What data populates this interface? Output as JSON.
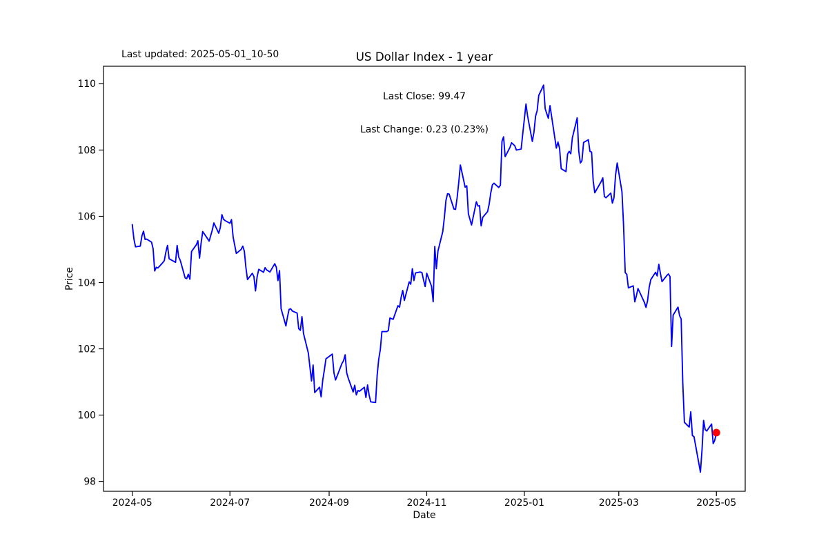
{
  "figure": {
    "last_updated": "Last updated: 2025-05-01_10-50"
  },
  "chart_data": {
    "type": "line",
    "title": "US Dollar Index - 1 year",
    "xlabel": "Date",
    "ylabel": "Price",
    "annotations": [
      "Last Close: 99.47",
      "Last Change: 0.23 (0.23%)"
    ],
    "last_close": 99.47,
    "last_change": 0.23,
    "last_change_pct": "0.23%",
    "line_color": "#0000ff",
    "marker_color": "#ff0000",
    "frame_color": "#000000",
    "x_ticks": [
      "2024-05",
      "2024-07",
      "2024-09",
      "2024-11",
      "2025-01",
      "2025-03",
      "2025-05"
    ],
    "y_ticks": [
      98,
      100,
      102,
      104,
      106,
      108,
      110
    ],
    "xlim": [
      "2024-04-13",
      "2025-05-19"
    ],
    "ylim": [
      97.7,
      110.53
    ],
    "grid": false,
    "legend": null,
    "marker": {
      "date": "2025-05-01",
      "value": 99.47
    },
    "series": [
      {
        "name": "US Dollar Index",
        "points": [
          [
            "2024-05-01",
            105.75
          ],
          [
            "2024-05-02",
            105.31
          ],
          [
            "2024-05-03",
            105.08
          ],
          [
            "2024-05-06",
            105.1
          ],
          [
            "2024-05-07",
            105.41
          ],
          [
            "2024-05-08",
            105.55
          ],
          [
            "2024-05-09",
            105.3
          ],
          [
            "2024-05-10",
            105.31
          ],
          [
            "2024-05-13",
            105.22
          ],
          [
            "2024-05-14",
            105.02
          ],
          [
            "2024-05-15",
            104.35
          ],
          [
            "2024-05-16",
            104.46
          ],
          [
            "2024-05-17",
            104.44
          ],
          [
            "2024-05-20",
            104.6
          ],
          [
            "2024-05-21",
            104.66
          ],
          [
            "2024-05-22",
            104.92
          ],
          [
            "2024-05-23",
            105.12
          ],
          [
            "2024-05-24",
            104.72
          ],
          [
            "2024-05-28",
            104.61
          ],
          [
            "2024-05-29",
            105.12
          ],
          [
            "2024-05-30",
            104.77
          ],
          [
            "2024-05-31",
            104.67
          ],
          [
            "2024-06-03",
            104.14
          ],
          [
            "2024-06-04",
            104.12
          ],
          [
            "2024-06-05",
            104.25
          ],
          [
            "2024-06-06",
            104.1
          ],
          [
            "2024-06-07",
            104.94
          ],
          [
            "2024-06-10",
            105.14
          ],
          [
            "2024-06-11",
            105.26
          ],
          [
            "2024-06-12",
            104.74
          ],
          [
            "2024-06-13",
            105.2
          ],
          [
            "2024-06-14",
            105.54
          ],
          [
            "2024-06-17",
            105.33
          ],
          [
            "2024-06-18",
            105.25
          ],
          [
            "2024-06-20",
            105.59
          ],
          [
            "2024-06-21",
            105.8
          ],
          [
            "2024-06-24",
            105.49
          ],
          [
            "2024-06-25",
            105.66
          ],
          [
            "2024-06-26",
            106.05
          ],
          [
            "2024-06-27",
            105.91
          ],
          [
            "2024-06-28",
            105.87
          ],
          [
            "2024-07-01",
            105.79
          ],
          [
            "2024-07-02",
            105.9
          ],
          [
            "2024-07-03",
            105.37
          ],
          [
            "2024-07-05",
            104.88
          ],
          [
            "2024-07-08",
            105.0
          ],
          [
            "2024-07-09",
            105.1
          ],
          [
            "2024-07-10",
            104.95
          ],
          [
            "2024-07-11",
            104.45
          ],
          [
            "2024-07-12",
            104.09
          ],
          [
            "2024-07-15",
            104.28
          ],
          [
            "2024-07-16",
            104.18
          ],
          [
            "2024-07-17",
            103.75
          ],
          [
            "2024-07-18",
            104.17
          ],
          [
            "2024-07-19",
            104.4
          ],
          [
            "2024-07-22",
            104.31
          ],
          [
            "2024-07-23",
            104.45
          ],
          [
            "2024-07-24",
            104.38
          ],
          [
            "2024-07-25",
            104.35
          ],
          [
            "2024-07-26",
            104.32
          ],
          [
            "2024-07-29",
            104.57
          ],
          [
            "2024-07-30",
            104.46
          ],
          [
            "2024-07-31",
            104.06
          ],
          [
            "2024-08-01",
            104.36
          ],
          [
            "2024-08-02",
            103.21
          ],
          [
            "2024-08-05",
            102.69
          ],
          [
            "2024-08-06",
            102.97
          ],
          [
            "2024-08-07",
            103.19
          ],
          [
            "2024-08-08",
            103.21
          ],
          [
            "2024-08-09",
            103.14
          ],
          [
            "2024-08-12",
            103.08
          ],
          [
            "2024-08-13",
            102.61
          ],
          [
            "2024-08-14",
            102.56
          ],
          [
            "2024-08-15",
            102.97
          ],
          [
            "2024-08-16",
            102.46
          ],
          [
            "2024-08-19",
            101.87
          ],
          [
            "2024-08-20",
            101.44
          ],
          [
            "2024-08-21",
            101.03
          ],
          [
            "2024-08-22",
            101.51
          ],
          [
            "2024-08-23",
            100.68
          ],
          [
            "2024-08-26",
            100.84
          ],
          [
            "2024-08-27",
            100.55
          ],
          [
            "2024-08-28",
            101.05
          ],
          [
            "2024-08-29",
            101.35
          ],
          [
            "2024-08-30",
            101.7
          ],
          [
            "2024-09-03",
            101.84
          ],
          [
            "2024-09-04",
            101.27
          ],
          [
            "2024-09-05",
            101.06
          ],
          [
            "2024-09-06",
            101.18
          ],
          [
            "2024-09-09",
            101.56
          ],
          [
            "2024-09-10",
            101.64
          ],
          [
            "2024-09-11",
            101.82
          ],
          [
            "2024-09-12",
            101.27
          ],
          [
            "2024-09-13",
            101.11
          ],
          [
            "2024-09-16",
            100.7
          ],
          [
            "2024-09-17",
            100.9
          ],
          [
            "2024-09-18",
            100.61
          ],
          [
            "2024-09-19",
            100.74
          ],
          [
            "2024-09-20",
            100.72
          ],
          [
            "2024-09-23",
            100.84
          ],
          [
            "2024-09-24",
            100.53
          ],
          [
            "2024-09-25",
            100.91
          ],
          [
            "2024-09-26",
            100.6
          ],
          [
            "2024-09-27",
            100.4
          ],
          [
            "2024-09-30",
            100.38
          ],
          [
            "2024-10-01",
            101.2
          ],
          [
            "2024-10-02",
            101.69
          ],
          [
            "2024-10-03",
            101.98
          ],
          [
            "2024-10-04",
            102.52
          ],
          [
            "2024-10-07",
            102.52
          ],
          [
            "2024-10-08",
            102.55
          ],
          [
            "2024-10-09",
            102.93
          ],
          [
            "2024-10-10",
            102.91
          ],
          [
            "2024-10-11",
            102.89
          ],
          [
            "2024-10-14",
            103.3
          ],
          [
            "2024-10-15",
            103.26
          ],
          [
            "2024-10-16",
            103.56
          ],
          [
            "2024-10-17",
            103.76
          ],
          [
            "2024-10-18",
            103.46
          ],
          [
            "2024-10-21",
            104.02
          ],
          [
            "2024-10-22",
            103.95
          ],
          [
            "2024-10-23",
            104.42
          ],
          [
            "2024-10-24",
            104.06
          ],
          [
            "2024-10-25",
            104.29
          ],
          [
            "2024-10-28",
            104.32
          ],
          [
            "2024-10-29",
            104.3
          ],
          [
            "2024-10-30",
            104.08
          ],
          [
            "2024-10-31",
            103.88
          ],
          [
            "2024-11-01",
            104.28
          ],
          [
            "2024-11-04",
            103.89
          ],
          [
            "2024-11-05",
            103.42
          ],
          [
            "2024-11-06",
            105.09
          ],
          [
            "2024-11-07",
            104.42
          ],
          [
            "2024-11-08",
            104.95
          ],
          [
            "2024-11-11",
            105.54
          ],
          [
            "2024-11-12",
            105.96
          ],
          [
            "2024-11-13",
            106.48
          ],
          [
            "2024-11-14",
            106.68
          ],
          [
            "2024-11-15",
            106.67
          ],
          [
            "2024-11-18",
            106.22
          ],
          [
            "2024-11-19",
            106.21
          ],
          [
            "2024-11-20",
            106.56
          ],
          [
            "2024-11-21",
            107.03
          ],
          [
            "2024-11-22",
            107.55
          ],
          [
            "2024-11-25",
            106.88
          ],
          [
            "2024-11-26",
            106.92
          ],
          [
            "2024-11-27",
            106.08
          ],
          [
            "2024-11-29",
            105.74
          ],
          [
            "2024-12-02",
            106.44
          ],
          [
            "2024-12-03",
            106.31
          ],
          [
            "2024-12-04",
            106.32
          ],
          [
            "2024-12-05",
            105.71
          ],
          [
            "2024-12-06",
            105.97
          ],
          [
            "2024-12-09",
            106.14
          ],
          [
            "2024-12-10",
            106.36
          ],
          [
            "2024-12-11",
            106.7
          ],
          [
            "2024-12-12",
            106.95
          ],
          [
            "2024-12-13",
            107.0
          ],
          [
            "2024-12-16",
            106.87
          ],
          [
            "2024-12-17",
            106.94
          ],
          [
            "2024-12-18",
            108.26
          ],
          [
            "2024-12-19",
            108.4
          ],
          [
            "2024-12-20",
            107.8
          ],
          [
            "2024-12-23",
            108.08
          ],
          [
            "2024-12-24",
            108.22
          ],
          [
            "2024-12-26",
            108.13
          ],
          [
            "2024-12-27",
            108.0
          ],
          [
            "2024-12-30",
            108.03
          ],
          [
            "2024-12-31",
            108.49
          ],
          [
            "2025-01-02",
            109.39
          ],
          [
            "2025-01-03",
            109.03
          ],
          [
            "2025-01-06",
            108.26
          ],
          [
            "2025-01-07",
            108.55
          ],
          [
            "2025-01-08",
            109.02
          ],
          [
            "2025-01-09",
            109.19
          ],
          [
            "2025-01-10",
            109.65
          ],
          [
            "2025-01-13",
            109.96
          ],
          [
            "2025-01-14",
            109.25
          ],
          [
            "2025-01-15",
            109.1
          ],
          [
            "2025-01-16",
            108.96
          ],
          [
            "2025-01-17",
            109.34
          ],
          [
            "2025-01-21",
            108.06
          ],
          [
            "2025-01-22",
            108.24
          ],
          [
            "2025-01-23",
            108.05
          ],
          [
            "2025-01-24",
            107.44
          ],
          [
            "2025-01-27",
            107.35
          ],
          [
            "2025-01-28",
            107.88
          ],
          [
            "2025-01-29",
            107.96
          ],
          [
            "2025-01-30",
            107.89
          ],
          [
            "2025-01-31",
            108.37
          ],
          [
            "2025-02-03",
            108.97
          ],
          [
            "2025-02-04",
            107.96
          ],
          [
            "2025-02-05",
            107.61
          ],
          [
            "2025-02-06",
            107.68
          ],
          [
            "2025-02-07",
            108.23
          ],
          [
            "2025-02-10",
            108.31
          ],
          [
            "2025-02-11",
            107.96
          ],
          [
            "2025-02-12",
            107.94
          ],
          [
            "2025-02-13",
            107.07
          ],
          [
            "2025-02-14",
            106.71
          ],
          [
            "2025-02-18",
            107.05
          ],
          [
            "2025-02-19",
            107.16
          ],
          [
            "2025-02-20",
            106.6
          ],
          [
            "2025-02-21",
            106.56
          ],
          [
            "2025-02-24",
            106.7
          ],
          [
            "2025-02-25",
            106.4
          ],
          [
            "2025-02-26",
            106.56
          ],
          [
            "2025-02-27",
            107.24
          ],
          [
            "2025-02-28",
            107.61
          ],
          [
            "2025-03-03",
            106.74
          ],
          [
            "2025-03-04",
            105.74
          ],
          [
            "2025-03-05",
            104.3
          ],
          [
            "2025-03-06",
            104.25
          ],
          [
            "2025-03-07",
            103.84
          ],
          [
            "2025-03-10",
            103.9
          ],
          [
            "2025-03-11",
            103.42
          ],
          [
            "2025-03-12",
            103.6
          ],
          [
            "2025-03-13",
            103.82
          ],
          [
            "2025-03-14",
            103.72
          ],
          [
            "2025-03-17",
            103.4
          ],
          [
            "2025-03-18",
            103.25
          ],
          [
            "2025-03-19",
            103.45
          ],
          [
            "2025-03-20",
            103.85
          ],
          [
            "2025-03-21",
            104.09
          ],
          [
            "2025-03-24",
            104.31
          ],
          [
            "2025-03-25",
            104.2
          ],
          [
            "2025-03-26",
            104.55
          ],
          [
            "2025-03-27",
            104.28
          ],
          [
            "2025-03-28",
            104.03
          ],
          [
            "2025-03-31",
            104.21
          ],
          [
            "2025-04-01",
            104.26
          ],
          [
            "2025-04-02",
            104.18
          ],
          [
            "2025-04-03",
            102.07
          ],
          [
            "2025-04-04",
            103.02
          ],
          [
            "2025-04-07",
            103.26
          ],
          [
            "2025-04-08",
            103.0
          ],
          [
            "2025-04-09",
            102.9
          ],
          [
            "2025-04-10",
            100.93
          ],
          [
            "2025-04-11",
            99.78
          ],
          [
            "2025-04-14",
            99.64
          ],
          [
            "2025-04-15",
            100.1
          ],
          [
            "2025-04-16",
            99.38
          ],
          [
            "2025-04-17",
            99.35
          ],
          [
            "2025-04-21",
            98.28
          ],
          [
            "2025-04-22",
            98.94
          ],
          [
            "2025-04-23",
            99.84
          ],
          [
            "2025-04-24",
            99.56
          ],
          [
            "2025-04-25",
            99.52
          ],
          [
            "2025-04-28",
            99.73
          ],
          [
            "2025-04-29",
            99.14
          ],
          [
            "2025-04-30",
            99.24
          ],
          [
            "2025-05-01",
            99.47
          ]
        ]
      }
    ]
  }
}
